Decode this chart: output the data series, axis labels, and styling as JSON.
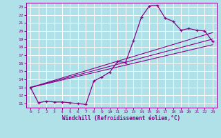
{
  "xlabel": "Windchill (Refroidissement éolien,°C)",
  "bg_color": "#b0e0e8",
  "line_color": "#880088",
  "xlim": [
    -0.5,
    23.5
  ],
  "ylim": [
    10.5,
    23.5
  ],
  "yticks": [
    11,
    12,
    13,
    14,
    15,
    16,
    17,
    18,
    19,
    20,
    21,
    22,
    23
  ],
  "xticks": [
    0,
    1,
    2,
    3,
    4,
    5,
    6,
    7,
    8,
    9,
    10,
    11,
    12,
    13,
    14,
    15,
    16,
    17,
    18,
    19,
    20,
    21,
    22,
    23
  ],
  "curve1_x": [
    0,
    1,
    2,
    3,
    4,
    5,
    6,
    7,
    8,
    9,
    10,
    11,
    12,
    13,
    14,
    15,
    16,
    17,
    18,
    19,
    20,
    21,
    22,
    23
  ],
  "curve1_y": [
    13.0,
    11.1,
    11.3,
    11.2,
    11.2,
    11.1,
    11.0,
    10.9,
    13.8,
    14.3,
    14.9,
    16.2,
    16.1,
    18.8,
    21.7,
    23.1,
    23.2,
    21.6,
    21.2,
    20.1,
    20.3,
    20.1,
    20.0,
    18.7
  ],
  "line1_x": [
    0,
    23
  ],
  "line1_y": [
    13.0,
    18.3
  ],
  "line2_x": [
    0,
    23
  ],
  "line2_y": [
    13.0,
    19.8
  ],
  "line3_x": [
    0,
    23
  ],
  "line3_y": [
    13.0,
    19.0
  ]
}
